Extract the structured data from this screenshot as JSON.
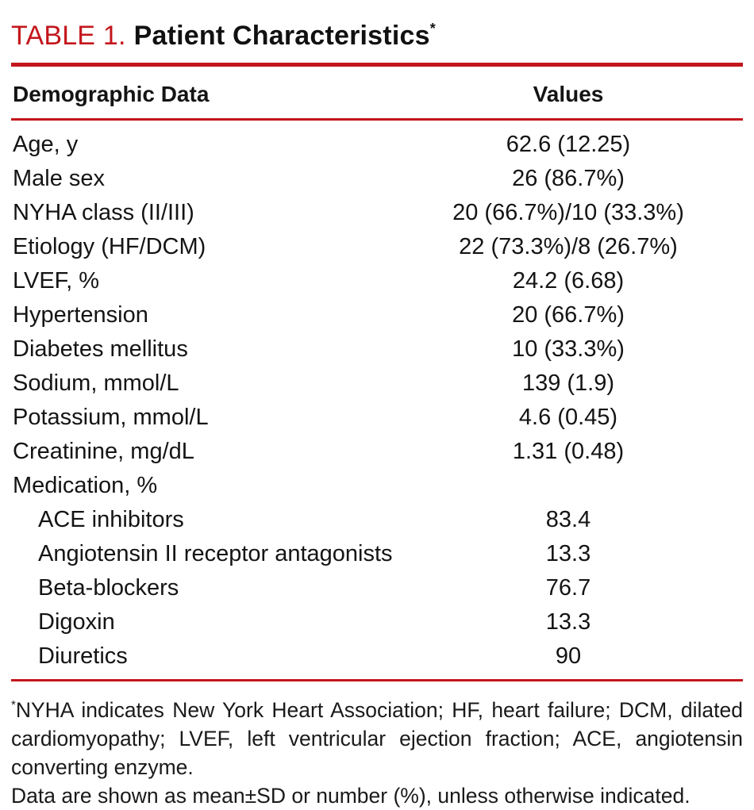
{
  "accent_color": "#c3161c",
  "title": {
    "prefix": "TABLE 1.",
    "text": "Patient Characteristics",
    "footnote_marker": "*"
  },
  "table": {
    "header": {
      "demographic": "Demographic Data",
      "values": "Values"
    },
    "rows": [
      {
        "label": "Age, y",
        "value": "62.6 (12.25)",
        "indent": false
      },
      {
        "label": "Male sex",
        "value": "26 (86.7%)",
        "indent": false
      },
      {
        "label": "NYHA class (II/III)",
        "value": "20 (66.7%)/10 (33.3%)",
        "indent": false
      },
      {
        "label": "Etiology (HF/DCM)",
        "value": "22 (73.3%)/8 (26.7%)",
        "indent": false
      },
      {
        "label": "LVEF, %",
        "value": "24.2 (6.68)",
        "indent": false
      },
      {
        "label": "Hypertension",
        "value": "20 (66.7%)",
        "indent": false
      },
      {
        "label": "Diabetes mellitus",
        "value": "10 (33.3%)",
        "indent": false
      },
      {
        "label": "Sodium, mmol/L",
        "value": "139 (1.9)",
        "indent": false
      },
      {
        "label": "Potassium, mmol/L",
        "value": "4.6 (0.45)",
        "indent": false
      },
      {
        "label": "Creatinine, mg/dL",
        "value": "1.31 (0.48)",
        "indent": false
      },
      {
        "label": "Medication, %",
        "value": "",
        "indent": false
      },
      {
        "label": "ACE inhibitors",
        "value": "83.4",
        "indent": true
      },
      {
        "label": "Angiotensin II receptor antagonists",
        "value": "13.3",
        "indent": true
      },
      {
        "label": "Beta-blockers",
        "value": "76.7",
        "indent": true
      },
      {
        "label": "Digoxin",
        "value": "13.3",
        "indent": true
      },
      {
        "label": "Diuretics",
        "value": "90",
        "indent": true
      }
    ]
  },
  "footnotes": {
    "marker": "*",
    "abbreviations": "NYHA indicates New York Heart Association; HF, heart failure; DCM, dilated cardiomyopathy; LVEF, left ventricular ejection fraction; ACE, angiotensin converting enzyme.",
    "data_note": "Data are shown as mean±SD or number (%), unless otherwise indicated."
  }
}
